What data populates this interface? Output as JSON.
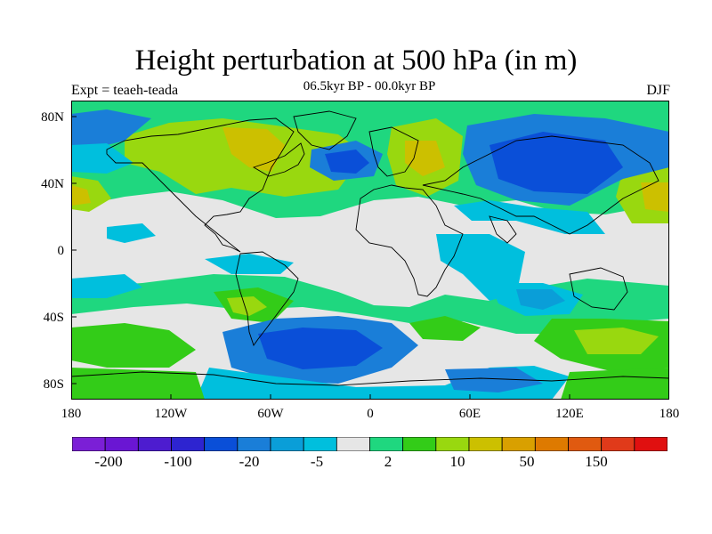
{
  "title": "Height perturbation at 500 hPa (in m)",
  "subtitle": "06.5kyr BP - 00.0kyr BP",
  "experiment_label": "Expt = teaeh-teada",
  "season_label": "DJF",
  "axes": {
    "y_ticks": [
      "80N",
      "40N",
      "0",
      "40S",
      "80S"
    ],
    "x_ticks": [
      "180",
      "120W",
      "60W",
      "0",
      "60E",
      "120E",
      "180"
    ]
  },
  "colorbar": {
    "colors": [
      "#7b1fd6",
      "#6a16d3",
      "#4d1ccf",
      "#2d24d0",
      "#0a4fd8",
      "#1a7ed8",
      "#0a9ed8",
      "#00bfdd",
      "#e6e6e6",
      "#1fd77f",
      "#33cc18",
      "#99d80f",
      "#ccc000",
      "#d9a000",
      "#de7a00",
      "#e05a10",
      "#e03a1a",
      "#e01010"
    ],
    "labels": [
      "-200",
      "-100",
      "-20",
      "-5",
      "2",
      "10",
      "50",
      "150"
    ]
  },
  "map": {
    "background_color": "#e6e6e6",
    "projection": "cylindrical-equidistant"
  }
}
